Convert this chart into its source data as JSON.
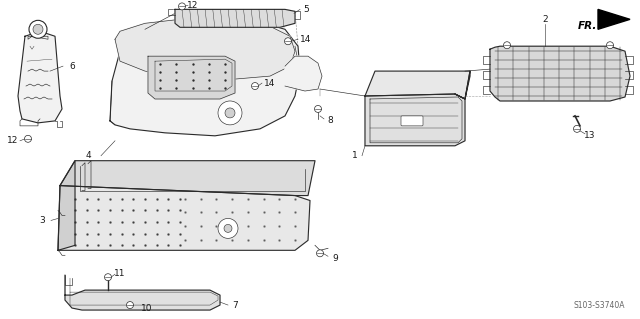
{
  "background_color": "#ffffff",
  "diagram_code": "S103-S3740A",
  "fr_arrow_label": "FR.",
  "figsize": [
    6.4,
    3.19
  ],
  "dpi": 100,
  "line_color": "#2a2a2a",
  "fill_color": "#f2f2f2",
  "text_color": "#1a1a1a",
  "font_size_labels": 6.5,
  "font_size_code": 5.5
}
